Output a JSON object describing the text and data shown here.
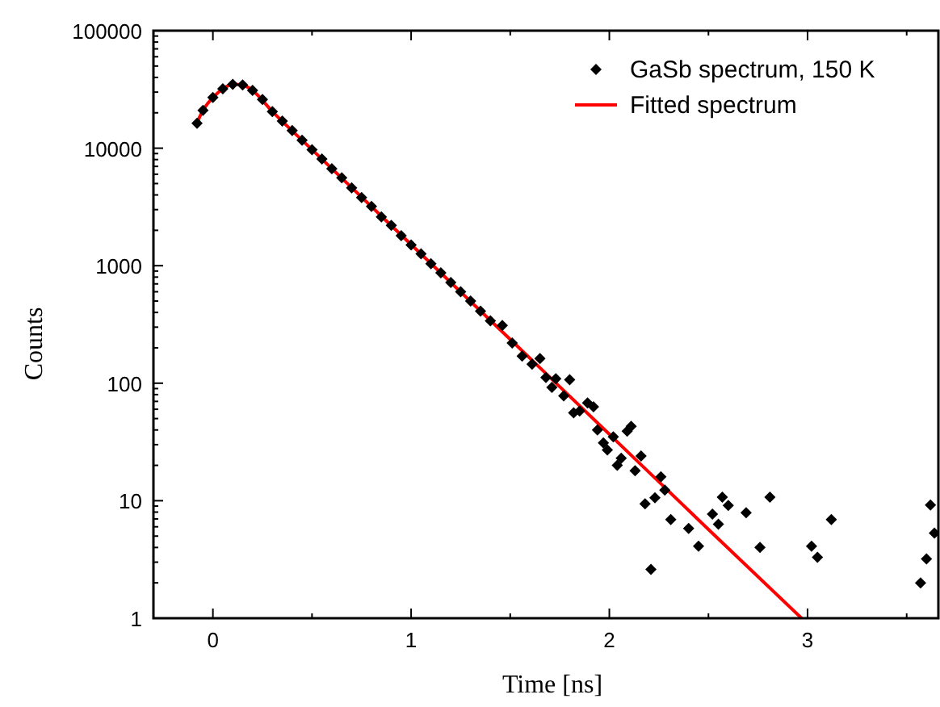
{
  "chart_data": {
    "type": "scatter",
    "xlabel": "Time [ns]",
    "ylabel": "Counts",
    "log": "y",
    "legend": "top right",
    "grid": false,
    "xlim": [
      -0.3,
      3.66
    ],
    "xticks": [
      0,
      {
        "value": 0.5,
        "label": null
      },
      1,
      {
        "value": 1.5,
        "label": null
      },
      2,
      {
        "value": 2.5,
        "label": null
      },
      3,
      {
        "value": 3.5,
        "label": null
      }
    ],
    "ylim": [
      1,
      100000
    ],
    "yticks": [
      1,
      {
        "value": 2,
        "label": null
      },
      {
        "value": 3,
        "label": null
      },
      {
        "value": 4,
        "label": null
      },
      {
        "value": 5,
        "label": null
      },
      {
        "value": 6,
        "label": null
      },
      {
        "value": 7,
        "label": null
      },
      {
        "value": 8,
        "label": null
      },
      {
        "value": 9,
        "label": null
      },
      10,
      {
        "value": 20,
        "label": null
      },
      {
        "value": 30,
        "label": null
      },
      {
        "value": 40,
        "label": null
      },
      {
        "value": 50,
        "label": null
      },
      {
        "value": 60,
        "label": null
      },
      {
        "value": 70,
        "label": null
      },
      {
        "value": 80,
        "label": null
      },
      {
        "value": 90,
        "label": null
      },
      100,
      {
        "value": 200,
        "label": null
      },
      {
        "value": 300,
        "label": null
      },
      {
        "value": 400,
        "label": null
      },
      {
        "value": 500,
        "label": null
      },
      {
        "value": 600,
        "label": null
      },
      {
        "value": 700,
        "label": null
      },
      {
        "value": 800,
        "label": null
      },
      {
        "value": 900,
        "label": null
      },
      1000,
      {
        "value": 2000,
        "label": null
      },
      {
        "value": 3000,
        "label": null
      },
      {
        "value": 4000,
        "label": null
      },
      {
        "value": 5000,
        "label": null
      },
      {
        "value": 6000,
        "label": null
      },
      {
        "value": 7000,
        "label": null
      },
      {
        "value": 8000,
        "label": null
      },
      {
        "value": 9000,
        "label": null
      },
      10000,
      {
        "value": 20000,
        "label": null
      },
      {
        "value": 30000,
        "label": null
      },
      {
        "value": 40000,
        "label": null
      },
      {
        "value": 50000,
        "label": null
      },
      {
        "value": 60000,
        "label": null
      },
      {
        "value": 70000,
        "label": null
      },
      {
        "value": 80000,
        "label": null
      },
      {
        "value": 90000,
        "label": null
      },
      100000
    ],
    "series": [
      {
        "name": "GaSb spectrum, 150 K",
        "marker": "diamond",
        "color": "#000000",
        "x": [
          -0.08,
          -0.05,
          0,
          0.05,
          0.1,
          0.15,
          0.2,
          0.25,
          0.3,
          0.35,
          0.4,
          0.45,
          0.5,
          0.55,
          0.6,
          0.65,
          0.7,
          0.75,
          0.8,
          0.85,
          0.9,
          0.95,
          1.0,
          1.05,
          1.1,
          1.15,
          1.2,
          1.25,
          1.3,
          1.35,
          1.4,
          1.46,
          1.51,
          1.56,
          1.61,
          1.65,
          1.68,
          1.71,
          1.73,
          1.77,
          1.8,
          1.82,
          1.85,
          1.89,
          1.92,
          1.94,
          1.97,
          1.99,
          2.02,
          2.04,
          2.06,
          2.09,
          2.11,
          2.13,
          2.16,
          2.18,
          2.21,
          2.23,
          2.26,
          2.28,
          2.31,
          2.4,
          2.45,
          2.52,
          2.55,
          2.57,
          2.6,
          2.69,
          2.76,
          2.81,
          3.02,
          3.05,
          3.12,
          3.57,
          3.6,
          3.62,
          3.64
        ],
        "values": [
          16300,
          21000,
          27000,
          32000,
          35000,
          34500,
          31000,
          26000,
          20500,
          17000,
          14100,
          11700,
          9700,
          8100,
          6700,
          5600,
          4600,
          3800,
          3200,
          2600,
          2200,
          1800,
          1500,
          1260,
          1040,
          870,
          720,
          600,
          500,
          410,
          340,
          310,
          220,
          170,
          145,
          162,
          112,
          92,
          109,
          78,
          107,
          56,
          58,
          68,
          63,
          40,
          31,
          27,
          35,
          20,
          23,
          39,
          43,
          18,
          24,
          9.4,
          2.6,
          10.6,
          16,
          12.3,
          6.9,
          5.8,
          4.1,
          7.7,
          6.3,
          10.7,
          9.1,
          7.9,
          4.0,
          10.7,
          4.1,
          3.3,
          6.9,
          2.0,
          3.2,
          9.2,
          5.3
        ]
      },
      {
        "name": "Fitted spectrum",
        "type": "line",
        "line_style": "solid",
        "color": "#ff0000",
        "x": [
          -0.08,
          -0.05,
          0,
          0.05,
          0.1,
          0.15,
          0.2,
          0.3,
          0.5,
          1.0,
          1.5,
          2.0,
          2.5,
          2.97
        ],
        "values": [
          16500,
          21000,
          27000,
          32000,
          35000,
          34500,
          31000,
          20500,
          9720,
          1514,
          236,
          36.8,
          5.7,
          1.0
        ]
      }
    ]
  }
}
